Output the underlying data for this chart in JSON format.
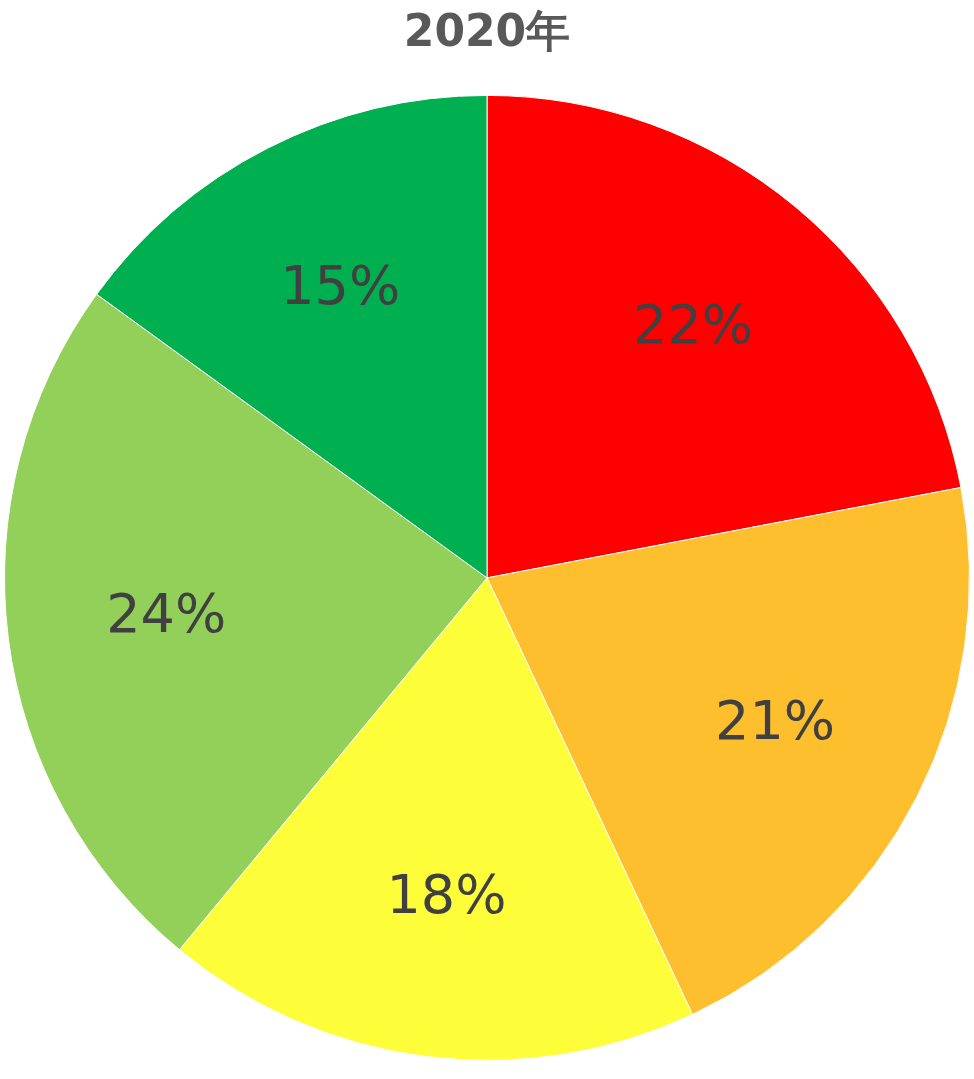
{
  "chart_data": {
    "type": "pie",
    "title": "2020年",
    "categories": [
      null,
      null,
      null,
      null,
      null
    ],
    "values": [
      22,
      21,
      18,
      24,
      15
    ],
    "colors": [
      "#ff0000",
      "#fdbf2d",
      "#fdfd3a",
      "#92d05a",
      "#00b050"
    ],
    "value_labels": [
      "22%",
      "21%",
      "18%",
      "24%",
      "15%"
    ],
    "legend": false
  }
}
